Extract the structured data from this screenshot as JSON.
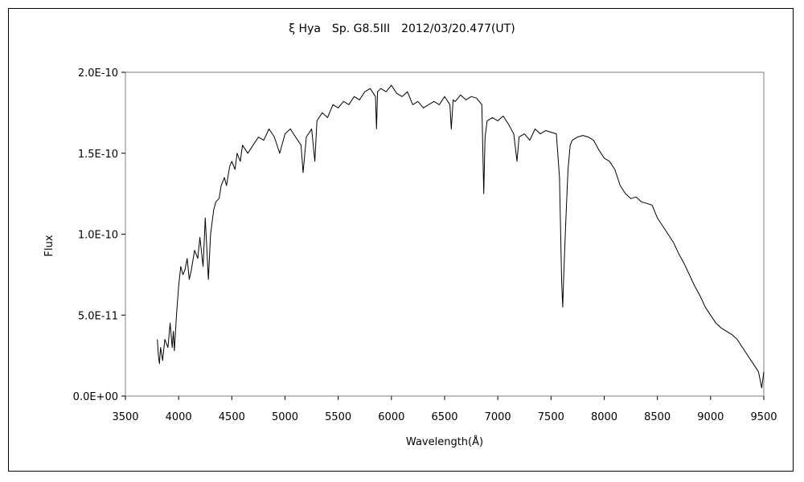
{
  "chart_data": {
    "type": "line",
    "title": "ξ Hya　Sp. G8.5III　2012/03/20.477(UT)",
    "xlabel": "Wavelength(Å)",
    "ylabel": "Flux",
    "xlim": [
      3500,
      9500
    ],
    "ylim": [
      0,
      2e-10
    ],
    "x_ticks": [
      3500,
      4000,
      4500,
      5000,
      5500,
      6000,
      6500,
      7000,
      7500,
      8000,
      8500,
      9000,
      9500
    ],
    "x_tick_labels": [
      "3500",
      "4000",
      "4500",
      "5000",
      "5500",
      "6000",
      "6500",
      "7000",
      "7500",
      "8000",
      "8500",
      "9000",
      "9500"
    ],
    "y_ticks": [
      0,
      5e-11,
      1e-10,
      1.5e-10,
      2e-10
    ],
    "y_tick_labels": [
      "0.0E+00",
      "5.0E-11",
      "1.0E-10",
      "1.5E-10",
      "2.0E-10"
    ],
    "grid": false,
    "legend": "none",
    "series": [
      {
        "color": "#000000",
        "x": [
          3800,
          3810,
          3820,
          3830,
          3850,
          3870,
          3900,
          3920,
          3940,
          3950,
          3960,
          3980,
          4000,
          4020,
          4040,
          4060,
          4080,
          4100,
          4120,
          4150,
          4180,
          4200,
          4230,
          4250,
          4280,
          4300,
          4310,
          4330,
          4350,
          4380,
          4400,
          4430,
          4450,
          4480,
          4500,
          4530,
          4550,
          4580,
          4600,
          4650,
          4700,
          4750,
          4800,
          4850,
          4900,
          4950,
          5000,
          5050,
          5100,
          5150,
          5170,
          5200,
          5250,
          5280,
          5300,
          5350,
          5400,
          5450,
          5500,
          5550,
          5600,
          5650,
          5700,
          5750,
          5800,
          5850,
          5860,
          5870,
          5900,
          5950,
          6000,
          6050,
          6100,
          6150,
          6200,
          6250,
          6300,
          6350,
          6400,
          6450,
          6500,
          6550,
          6563,
          6580,
          6600,
          6650,
          6700,
          6750,
          6800,
          6850,
          6868,
          6880,
          6900,
          6950,
          7000,
          7050,
          7100,
          7150,
          7180,
          7200,
          7250,
          7300,
          7350,
          7400,
          7450,
          7500,
          7550,
          7580,
          7600,
          7610,
          7620,
          7640,
          7660,
          7680,
          7700,
          7750,
          7800,
          7850,
          7900,
          7950,
          8000,
          8050,
          8100,
          8150,
          8200,
          8250,
          8300,
          8350,
          8400,
          8450,
          8500,
          8550,
          8600,
          8650,
          8700,
          8750,
          8800,
          8850,
          8900,
          8950,
          9000,
          9050,
          9100,
          9150,
          9200,
          9250,
          9300,
          9350,
          9400,
          9450,
          9480,
          9500
        ],
        "y": [
          3.5e-11,
          2.5e-11,
          2e-11,
          3e-11,
          2.2e-11,
          3.5e-11,
          3e-11,
          4.5e-11,
          3e-11,
          4e-11,
          2.8e-11,
          5e-11,
          6.8e-11,
          8e-11,
          7.5e-11,
          7.8e-11,
          8.5e-11,
          7.2e-11,
          7.8e-11,
          9e-11,
          8.5e-11,
          9.8e-11,
          8e-11,
          1.1e-10,
          7.2e-11,
          1e-10,
          1.05e-10,
          1.15e-10,
          1.2e-10,
          1.22e-10,
          1.3e-10,
          1.35e-10,
          1.3e-10,
          1.42e-10,
          1.45e-10,
          1.4e-10,
          1.5e-10,
          1.45e-10,
          1.55e-10,
          1.5e-10,
          1.55e-10,
          1.6e-10,
          1.58e-10,
          1.65e-10,
          1.6e-10,
          1.5e-10,
          1.62e-10,
          1.65e-10,
          1.6e-10,
          1.55e-10,
          1.38e-10,
          1.6e-10,
          1.65e-10,
          1.45e-10,
          1.7e-10,
          1.75e-10,
          1.72e-10,
          1.8e-10,
          1.78e-10,
          1.82e-10,
          1.8e-10,
          1.85e-10,
          1.83e-10,
          1.88e-10,
          1.9e-10,
          1.85e-10,
          1.65e-10,
          1.88e-10,
          1.9e-10,
          1.88e-10,
          1.92e-10,
          1.87e-10,
          1.85e-10,
          1.88e-10,
          1.8e-10,
          1.82e-10,
          1.78e-10,
          1.8e-10,
          1.82e-10,
          1.8e-10,
          1.85e-10,
          1.8e-10,
          1.65e-10,
          1.83e-10,
          1.82e-10,
          1.86e-10,
          1.83e-10,
          1.85e-10,
          1.84e-10,
          1.8e-10,
          1.25e-10,
          1.6e-10,
          1.7e-10,
          1.72e-10,
          1.7e-10,
          1.73e-10,
          1.68e-10,
          1.62e-10,
          1.45e-10,
          1.6e-10,
          1.62e-10,
          1.58e-10,
          1.65e-10,
          1.62e-10,
          1.64e-10,
          1.63e-10,
          1.62e-10,
          1.35e-10,
          7e-11,
          5.5e-11,
          7.5e-11,
          1.1e-10,
          1.4e-10,
          1.55e-10,
          1.58e-10,
          1.6e-10,
          1.61e-10,
          1.6e-10,
          1.58e-10,
          1.52e-10,
          1.47e-10,
          1.45e-10,
          1.4e-10,
          1.3e-10,
          1.25e-10,
          1.22e-10,
          1.23e-10,
          1.2e-10,
          1.19e-10,
          1.18e-10,
          1.1e-10,
          1.05e-10,
          1e-10,
          9.5e-11,
          8.8e-11,
          8.2e-11,
          7.5e-11,
          6.8e-11,
          6.2e-11,
          5.5e-11,
          5e-11,
          4.5e-11,
          4.2e-11,
          4e-11,
          3.8e-11,
          3.5e-11,
          3e-11,
          2.5e-11,
          2e-11,
          1.5e-11,
          5e-12,
          1.5e-11
        ]
      }
    ]
  }
}
